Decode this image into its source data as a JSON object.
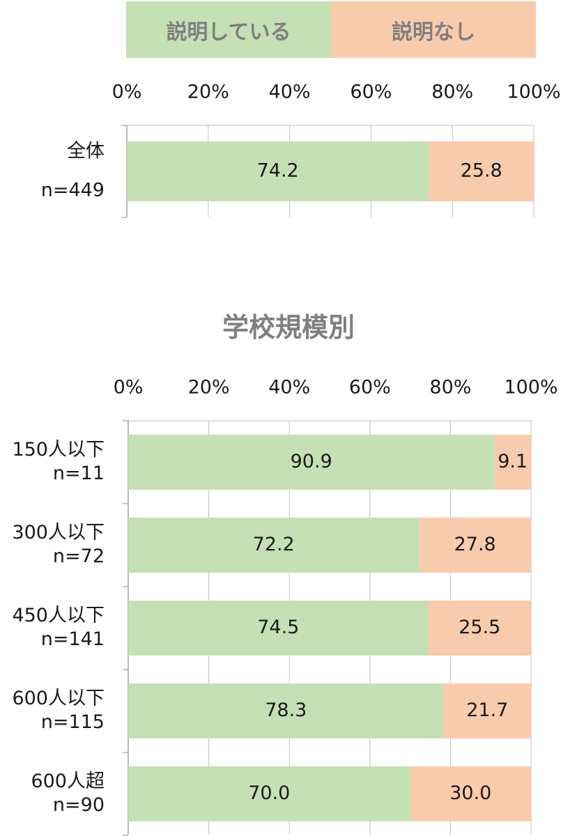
{
  "legend": {
    "items": [
      {
        "label": "説明している",
        "color": "#c5e0b4"
      },
      {
        "label": "説明なし",
        "color": "#f8cbad"
      }
    ]
  },
  "section_title": "学校規模別",
  "chart_data": [
    {
      "type": "bar",
      "orientation": "horizontal",
      "stacked": true,
      "xlim": [
        0,
        100
      ],
      "tick_labels": [
        "0%",
        "20%",
        "40%",
        "60%",
        "80%",
        "100%"
      ],
      "categories": [
        [
          "全体",
          "n=449"
        ]
      ],
      "series": [
        {
          "name": "説明している",
          "values": [
            74.2
          ],
          "color": "#c5e0b4"
        },
        {
          "name": "説明なし",
          "values": [
            25.8
          ],
          "color": "#f8cbad"
        }
      ]
    },
    {
      "type": "bar",
      "orientation": "horizontal",
      "stacked": true,
      "xlim": [
        0,
        100
      ],
      "tick_labels": [
        "0%",
        "20%",
        "40%",
        "60%",
        "80%",
        "100%"
      ],
      "categories": [
        [
          "150人以下",
          "n=11"
        ],
        [
          "300人以下",
          "n=72"
        ],
        [
          "450人以下",
          "n=141"
        ],
        [
          "600人以下",
          "n=115"
        ],
        [
          "600人超",
          "n=90"
        ]
      ],
      "series": [
        {
          "name": "説明している",
          "values": [
            90.9,
            72.2,
            74.5,
            78.3,
            70.0
          ],
          "color": "#c5e0b4"
        },
        {
          "name": "説明なし",
          "values": [
            9.1,
            27.8,
            25.5,
            21.7,
            30.0
          ],
          "color": "#f8cbad"
        }
      ]
    }
  ]
}
